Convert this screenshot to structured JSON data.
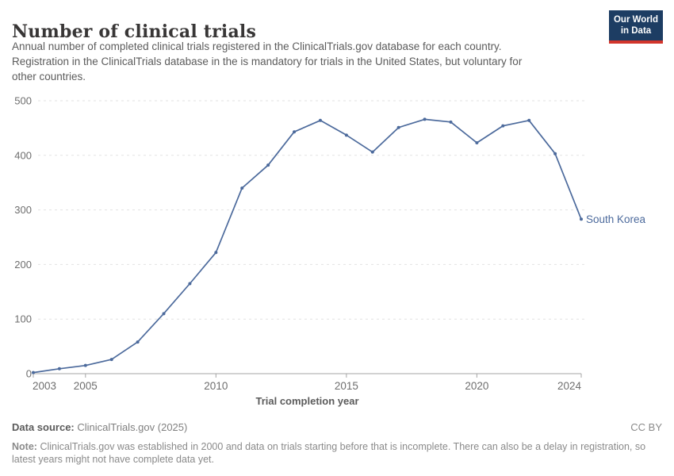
{
  "header": {
    "title": "Number of clinical trials",
    "subtitle_lines": [
      "Annual number of completed clinical trials registered in the ClinicalTrials.gov database for each country.",
      "Registration in the ClinicalTrials database in the is mandatory for trials in the United States, but voluntary for",
      "other countries."
    ]
  },
  "logo": {
    "line1": "Our World",
    "line2": "in Data",
    "bg_color": "#1d3d63",
    "bar_color": "#d2352c"
  },
  "chart_data": {
    "type": "line",
    "title": "Number of clinical trials",
    "xlabel": "Trial completion year",
    "ylabel": "",
    "x": [
      2003,
      2004,
      2005,
      2006,
      2007,
      2008,
      2009,
      2010,
      2011,
      2012,
      2013,
      2014,
      2015,
      2016,
      2017,
      2018,
      2019,
      2020,
      2021,
      2022,
      2023,
      2024
    ],
    "series": [
      {
        "name": "South Korea",
        "color": "#4c6a9c",
        "values": [
          2,
          9,
          15,
          26,
          58,
          110,
          165,
          222,
          340,
          382,
          443,
          464,
          437,
          406,
          451,
          466,
          461,
          423,
          454,
          464,
          403,
          283
        ]
      }
    ],
    "ylim": [
      0,
      500
    ],
    "yticks": [
      0,
      100,
      200,
      300,
      400,
      500
    ],
    "xticks": [
      2003,
      2005,
      2010,
      2015,
      2020,
      2024
    ],
    "grid": "horizontal-dashed",
    "legend": "line-end-label"
  },
  "footer": {
    "source_label": "Data source:",
    "source_value": "ClinicalTrials.gov (2025)",
    "license": "CC BY",
    "note_label": "Note:",
    "note_text": "ClinicalTrials.gov was established in 2000 and data on trials starting before that is incomplete. There can also be a delay in registration, so latest years might not have complete data yet."
  },
  "colors": {
    "line": "#4c6a9c",
    "grid": "#e2e2e2",
    "axis": "#a5a5a5",
    "tick_label": "#6e6e6e",
    "axis_title": "#5b5b5b",
    "title": "#383636",
    "subtitle": "#5b5b5b"
  }
}
